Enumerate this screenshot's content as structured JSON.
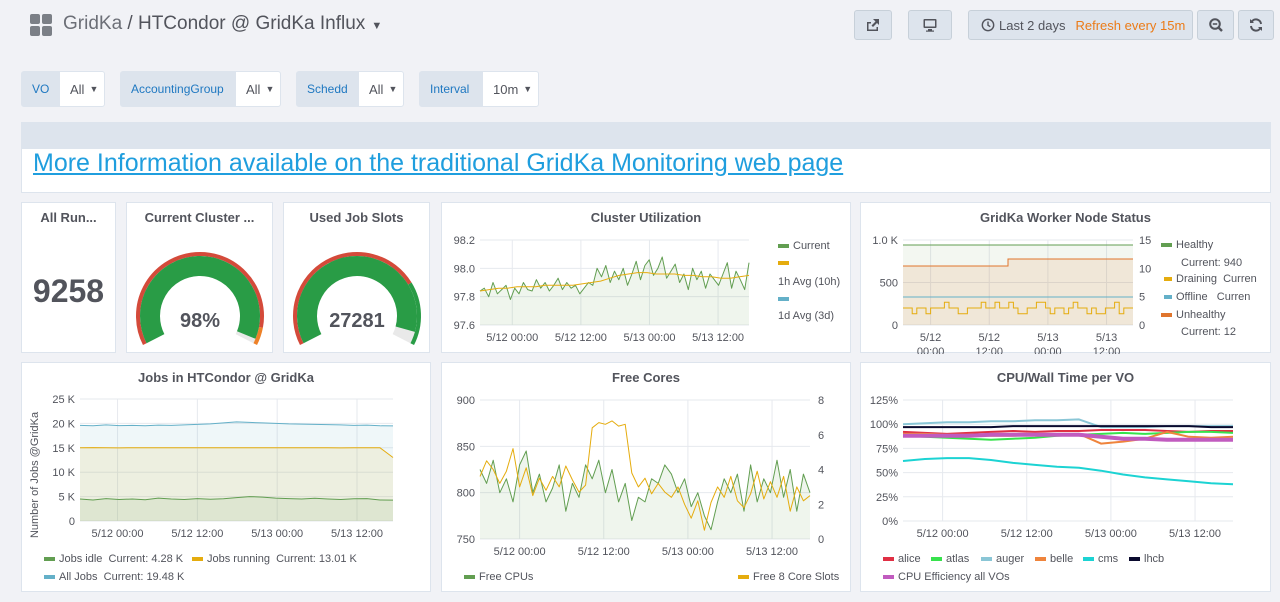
{
  "header": {
    "org": "GridKa",
    "separator": " / ",
    "dashboard": "HTCondor @ GridKa Influx",
    "time_range": "Last 2 days",
    "refresh": "Refresh every 15m"
  },
  "variables": [
    {
      "label": "VO",
      "value": "All"
    },
    {
      "label": "AccountingGroup",
      "value": "All"
    },
    {
      "label": "Schedd",
      "value": "All"
    },
    {
      "label": "Interval",
      "value": "10m"
    }
  ],
  "info_link": "More Information available on the traditional GridKa Monitoring web page",
  "panels": {
    "all_running": {
      "title": "All Run...",
      "value": "9258"
    },
    "cluster_gauge": {
      "title": "Current Cluster ...",
      "value": "98%",
      "percent": 98
    },
    "used_slots": {
      "title": "Used Job Slots",
      "value": "27281",
      "fraction": 0.95
    },
    "cluster_util": {
      "title": "Cluster Utilization"
    },
    "worker_status": {
      "title": "GridKa Worker Node Status"
    },
    "jobs": {
      "title": "Jobs in HTCondor @ GridKa"
    },
    "free_cores": {
      "title": "Free Cores"
    },
    "cpu_wall": {
      "title": "CPU/Wall Time per VO"
    }
  },
  "colors": {
    "green": "#629e51",
    "yellow": "#e5ac0e",
    "blue": "#64b0c8",
    "orange": "#e0752d",
    "red": "#e24d42",
    "gauge_green": "#299c46",
    "gauge_red": "#d44a3a",
    "gauge_orange": "#ed8128"
  },
  "chart_data": [
    {
      "id": "cluster_util",
      "type": "line",
      "title": "Cluster Utilization",
      "x_ticks": [
        "5/12 00:00",
        "5/12 12:00",
        "5/13 00:00",
        "5/13 12:00"
      ],
      "y_ticks": [
        "98.2",
        "98.0",
        "97.8",
        "97.6"
      ],
      "ylim": [
        97.6,
        98.2
      ],
      "series": [
        {
          "name": "Current",
          "color": "#629e51",
          "values": [
            97.84,
            97.86,
            97.8,
            97.9,
            97.82,
            97.85,
            97.88,
            97.78,
            97.86,
            97.82,
            97.9,
            97.85,
            97.84,
            97.92,
            97.86,
            97.9,
            97.84,
            97.88,
            97.93,
            97.85,
            97.9,
            97.86,
            97.88,
            97.82,
            97.86,
            97.9,
            97.88,
            98.0,
            97.94,
            98.02,
            97.9,
            97.98,
            97.92,
            98.0,
            97.88,
            97.96,
            98.05,
            97.92,
            98.02,
            98.06,
            97.95,
            98.0,
            98.08,
            97.93,
            97.98,
            98.03,
            97.9,
            97.96,
            97.85,
            98.0,
            97.92,
            97.98,
            97.86,
            97.96,
            97.92,
            97.88,
            97.96,
            98.04,
            97.86,
            97.98,
            97.92,
            97.85,
            98.04
          ]
        },
        {
          "name": "1h Avg (10h)",
          "color": "#e5ac0e",
          "values": [
            97.84,
            97.85,
            97.86,
            97.86,
            97.87,
            97.87,
            97.87,
            97.88,
            97.88,
            97.88,
            97.88,
            97.89,
            97.9,
            97.91,
            97.93,
            97.95,
            97.96,
            97.97,
            97.97,
            97.96,
            97.96,
            97.96,
            97.95,
            97.95,
            97.94,
            97.94,
            97.93,
            97.93,
            97.94,
            97.95
          ]
        },
        {
          "name": "1d Avg (3d)",
          "color": "#64b0c8",
          "values": []
        }
      ]
    },
    {
      "id": "worker_status",
      "type": "line",
      "title": "GridKa Worker Node Status",
      "x_ticks": [
        "5/12",
        "5/12",
        "5/13",
        "5/13"
      ],
      "x_ticks_line2": [
        "00:00",
        "12:00",
        "00:00",
        "12:00"
      ],
      "y_ticks_left": [
        "1.0 K",
        "500",
        "0"
      ],
      "y_ticks_right": [
        "15",
        "10",
        "5",
        "0"
      ],
      "series": [
        {
          "name": "Healthy",
          "current": "940",
          "color": "#629e51"
        },
        {
          "name": "Draining",
          "current": "Curren",
          "color": "#e5ac0e"
        },
        {
          "name": "Offline",
          "current": "Curren",
          "color": "#64b0c8"
        },
        {
          "name": "Unhealthy",
          "current": "12",
          "color": "#e0752d"
        }
      ]
    },
    {
      "id": "jobs",
      "type": "line",
      "title": "Jobs in HTCondor @ GridKa",
      "ylabel": "Number of Jobs @GridKa",
      "x_ticks": [
        "5/12 00:00",
        "5/12 12:00",
        "5/13 00:00",
        "5/13 12:00"
      ],
      "y_ticks": [
        "25 K",
        "20 K",
        "15 K",
        "10 K",
        "5 K",
        "0"
      ],
      "ylim": [
        0,
        25000
      ],
      "series": [
        {
          "name": "Jobs idle",
          "current": "4.28 K",
          "color": "#629e51",
          "values": [
            4500,
            4300,
            4600,
            4400,
            4500,
            4350,
            4700,
            4500,
            4400,
            4600,
            4450,
            4550,
            4800,
            5000,
            4900,
            4700,
            4600,
            4500,
            4650,
            4500,
            4400,
            4550,
            4600,
            4300,
            4280
          ]
        },
        {
          "name": "Jobs running",
          "current": "13.01 K",
          "color": "#e5ac0e",
          "values": [
            15000,
            15050,
            15000,
            14980,
            15020,
            15000,
            15010,
            15000,
            14990,
            15000,
            15020,
            15000,
            15010,
            15000,
            15000,
            14990,
            15000,
            15010,
            15000,
            15000,
            14980,
            15000,
            14990,
            15000,
            13010
          ]
        },
        {
          "name": "All Jobs",
          "current": "19.48 K",
          "color": "#64b0c8",
          "values": [
            19600,
            19500,
            19700,
            19550,
            19600,
            19500,
            19650,
            19600,
            19700,
            19800,
            19900,
            20100,
            20300,
            20200,
            20100,
            20000,
            19900,
            19850,
            19800,
            19750,
            19700,
            19600,
            19650,
            19500,
            19480
          ]
        }
      ]
    },
    {
      "id": "free_cores",
      "type": "line",
      "title": "Free Cores",
      "x_ticks": [
        "5/12 00:00",
        "5/12 12:00",
        "5/13 00:00",
        "5/13 12:00"
      ],
      "y_ticks_left": [
        "900",
        "850",
        "800",
        "750"
      ],
      "y_ticks_right": [
        "8",
        "6",
        "4",
        "2",
        "0"
      ],
      "series": [
        {
          "name": "Free CPUs",
          "color": "#629e51",
          "values": [
            825,
            810,
            835,
            800,
            815,
            790,
            830,
            845,
            800,
            820,
            790,
            805,
            830,
            780,
            810,
            795,
            830,
            815,
            835,
            800,
            825,
            790,
            810,
            770,
            795,
            790,
            815,
            810,
            830,
            820,
            800,
            815,
            785,
            800,
            775,
            760,
            790,
            815,
            800,
            820,
            780,
            830,
            790,
            815,
            800,
            835,
            795,
            825,
            780,
            820,
            800
          ]
        },
        {
          "name": "Free 8 Core Slots",
          "color": "#e5ac0e",
          "values": [
            3.6,
            4.5,
            4.0,
            3.2,
            3.9,
            5.2,
            3.0,
            4.1,
            2.5,
            3.5,
            2.8,
            3.6,
            3.0,
            4.2,
            3.4,
            2.7,
            3.1,
            6.4,
            6.7,
            6.6,
            6.8,
            6.5,
            6.6,
            3.8,
            3.0,
            3.5,
            2.6,
            3.2,
            2.7,
            2.4,
            3.0,
            2.0,
            1.2,
            2.2,
            0.5,
            2.1,
            3.0,
            2.4,
            3.6,
            2.2,
            1.8,
            2.6,
            3.9,
            2.3,
            3.3,
            2.4,
            3.6,
            1.6,
            3.0,
            2.2,
            2.5
          ]
        }
      ]
    },
    {
      "id": "cpu_wall",
      "type": "line",
      "title": "CPU/Wall Time per VO",
      "x_ticks": [
        "5/12 00:00",
        "5/12 12:00",
        "5/13 00:00",
        "5/13 12:00"
      ],
      "y_ticks": [
        "125%",
        "100%",
        "75%",
        "50%",
        "25%",
        "0%"
      ],
      "ylim": [
        0,
        125
      ],
      "series": [
        {
          "name": "alice",
          "color": "#e02f44",
          "values": [
            92,
            91,
            90,
            91,
            92,
            93,
            92,
            93,
            93,
            94,
            94,
            94,
            93,
            92,
            93,
            93
          ]
        },
        {
          "name": "atlas",
          "color": "#37e24d",
          "values": [
            88,
            87,
            86,
            85,
            84,
            85,
            86,
            88,
            89,
            90,
            91,
            90,
            91,
            92,
            92,
            91
          ]
        },
        {
          "name": "auger",
          "color": "#8ac6d6",
          "values": [
            100,
            101,
            102,
            102,
            103,
            103,
            104,
            104,
            105,
            97,
            97,
            97,
            98,
            98,
            98,
            98
          ]
        },
        {
          "name": "belle",
          "color": "#ef843c",
          "values": [
            90,
            90,
            89,
            89,
            88,
            88,
            89,
            90,
            90,
            80,
            82,
            85,
            92,
            87,
            86,
            87
          ]
        },
        {
          "name": "cms",
          "color": "#1cd3d3",
          "values": [
            62,
            64,
            65,
            65,
            63,
            60,
            58,
            56,
            55,
            52,
            48,
            45,
            43,
            41,
            39,
            38
          ]
        },
        {
          "name": "lhcb",
          "color": "#0a0a2e",
          "values": [
            97,
            97,
            97,
            97,
            97,
            98,
            98,
            98,
            98,
            98,
            98,
            98,
            98,
            98,
            97,
            97
          ]
        },
        {
          "name": "CPU Efficiency all VOs",
          "color": "#c15bbf",
          "values": [
            88,
            88,
            88,
            88,
            89,
            89,
            89,
            89,
            89,
            87,
            85,
            85,
            84,
            84,
            84,
            84
          ]
        }
      ]
    }
  ]
}
